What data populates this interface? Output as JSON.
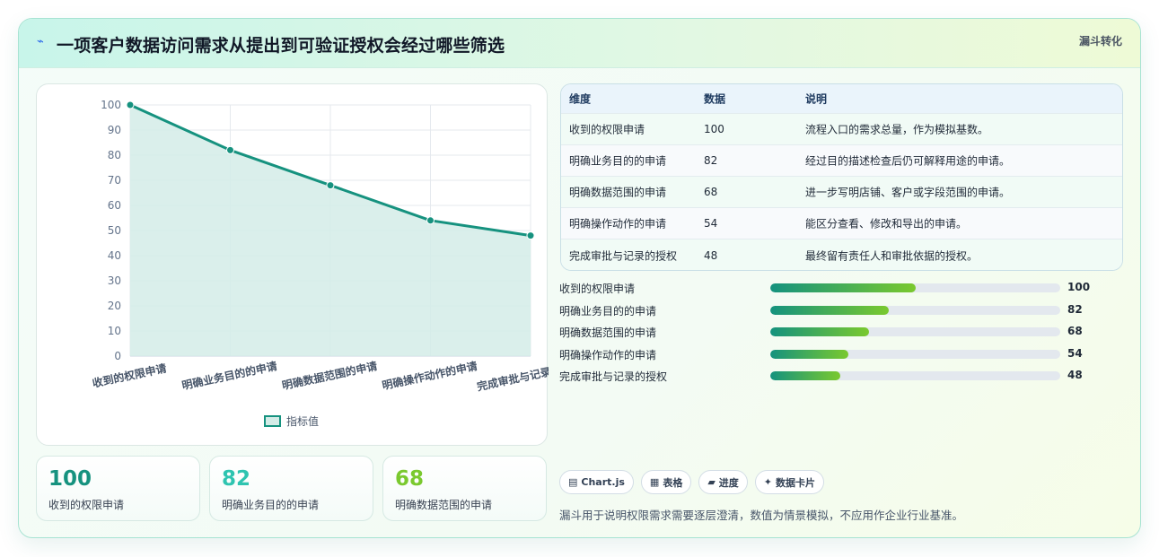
{
  "header": {
    "icon": "lightning-icon",
    "title": "一项客户数据访问需求从提出到可验证授权会经过哪些筛选",
    "tag": "漏斗转化"
  },
  "colors": {
    "line": "#16927f",
    "area": "#d4ece7",
    "kpi1": "#16927f",
    "kpi2": "#2ec4b0",
    "kpi3": "#7ac92e",
    "bar_start": "#14927e",
    "bar_end": "#7ac92e"
  },
  "chart_data": {
    "type": "line",
    "categories": [
      "收到的权限申请",
      "明确业务目的的申请",
      "明确数据范围的申请",
      "明确操作动作的申请",
      "完成审批与记录的授权"
    ],
    "series": [
      {
        "name": "指标值",
        "values": [
          100,
          82,
          68,
          54,
          48
        ]
      }
    ],
    "ylim": [
      0,
      100
    ],
    "yticks": [
      0,
      10,
      20,
      30,
      40,
      50,
      60,
      70,
      80,
      90,
      100
    ],
    "fill": true,
    "grid": true,
    "legend": "bottom"
  },
  "kpis": [
    {
      "value": "100",
      "label": "收到的权限申请"
    },
    {
      "value": "82",
      "label": "明确业务目的的申请"
    },
    {
      "value": "68",
      "label": "明确数据范围的申请"
    }
  ],
  "table": {
    "headers": [
      "维度",
      "数据",
      "说明"
    ],
    "rows": [
      [
        "收到的权限申请",
        "100",
        "流程入口的需求总量，作为模拟基数。"
      ],
      [
        "明确业务目的的申请",
        "82",
        "经过目的描述检查后仍可解释用途的申请。"
      ],
      [
        "明确数据范围的申请",
        "68",
        "进一步写明店铺、客户或字段范围的申请。"
      ],
      [
        "明确操作动作的申请",
        "54",
        "能区分查看、修改和导出的申请。"
      ],
      [
        "完成审批与记录的授权",
        "48",
        "最终留有责任人和审批依据的授权。"
      ]
    ]
  },
  "bars": [
    {
      "label": "收到的权限申请",
      "value": "100",
      "fraction": 0.5
    },
    {
      "label": "明确业务目的的申请",
      "value": "82",
      "fraction": 0.41
    },
    {
      "label": "明确数据范围的申请",
      "value": "68",
      "fraction": 0.34
    },
    {
      "label": "明确操作动作的申请",
      "value": "54",
      "fraction": 0.27
    },
    {
      "label": "完成审批与记录的授权",
      "value": "48",
      "fraction": 0.24
    }
  ],
  "chips": [
    {
      "icon": "chart-icon",
      "glyph": "▤",
      "label": "Chart.js"
    },
    {
      "icon": "table-icon",
      "glyph": "▦",
      "label": "表格"
    },
    {
      "icon": "progress-icon",
      "glyph": "▰",
      "label": "进度"
    },
    {
      "icon": "sparkle-icon",
      "glyph": "✦",
      "label": "数据卡片"
    }
  ],
  "note": "漏斗用于说明权限需求需要逐层澄清，数值为情景模拟，不应用作企业行业基准。"
}
